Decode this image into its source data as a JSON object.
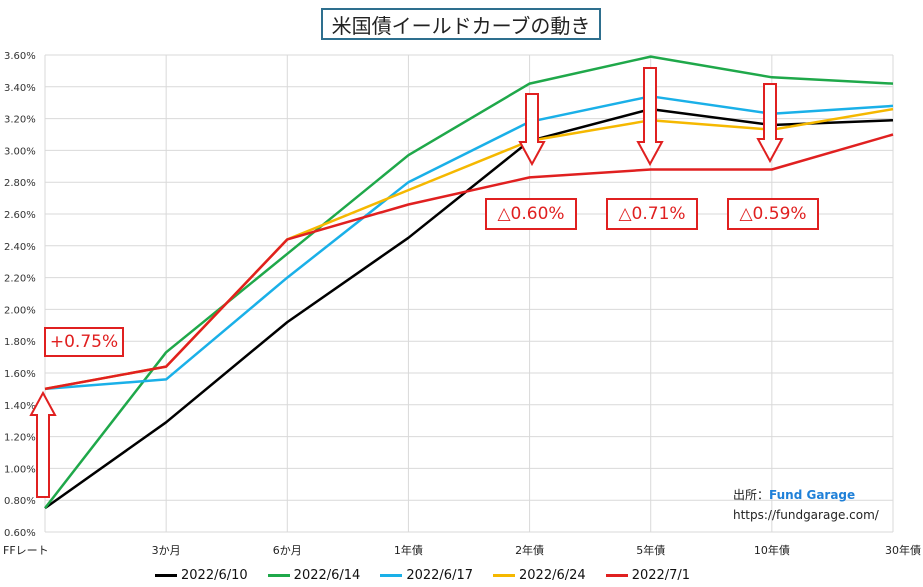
{
  "title": "米国債イールドカーブの動き",
  "chart_data": {
    "type": "line",
    "categories": [
      "FFレート",
      "3か月",
      "6か月",
      "1年債",
      "2年債",
      "5年債",
      "10年債",
      "30年債"
    ],
    "ylim": [
      0.6,
      3.6
    ],
    "y_ticks": [
      "0.60%",
      "0.80%",
      "1.00%",
      "1.20%",
      "1.40%",
      "1.60%",
      "1.80%",
      "2.00%",
      "2.20%",
      "2.40%",
      "2.60%",
      "2.80%",
      "3.00%",
      "3.20%",
      "3.40%",
      "3.60%"
    ],
    "grid": true,
    "legend_position": "bottom",
    "series": [
      {
        "name": "2022/6/10",
        "color": "#000000",
        "values": [
          0.75,
          1.29,
          1.92,
          2.45,
          3.06,
          3.26,
          3.16,
          3.19
        ]
      },
      {
        "name": "2022/6/14",
        "color": "#1fa84a",
        "values": [
          0.75,
          1.73,
          2.35,
          2.97,
          3.42,
          3.59,
          3.46,
          3.42
        ]
      },
      {
        "name": "2022/6/17",
        "color": "#1ab0e8",
        "values": [
          1.5,
          1.56,
          2.2,
          2.8,
          3.18,
          3.34,
          3.23,
          3.28
        ]
      },
      {
        "name": "2022/6/24",
        "color": "#f5b800",
        "values": [
          1.5,
          1.64,
          2.44,
          2.75,
          3.06,
          3.19,
          3.13,
          3.26
        ]
      },
      {
        "name": "2022/7/1",
        "color": "#e02020",
        "values": [
          1.5,
          1.64,
          2.44,
          2.66,
          2.83,
          2.88,
          2.88,
          3.1
        ]
      }
    ]
  },
  "annotations": {
    "up_label": "+0.75%",
    "down_labels": [
      "△0.60%",
      "△0.71%",
      "△0.59%"
    ]
  },
  "source": {
    "prefix": "出所：",
    "brand": "Fund Garage",
    "url": "https://fundgarage.com/"
  }
}
